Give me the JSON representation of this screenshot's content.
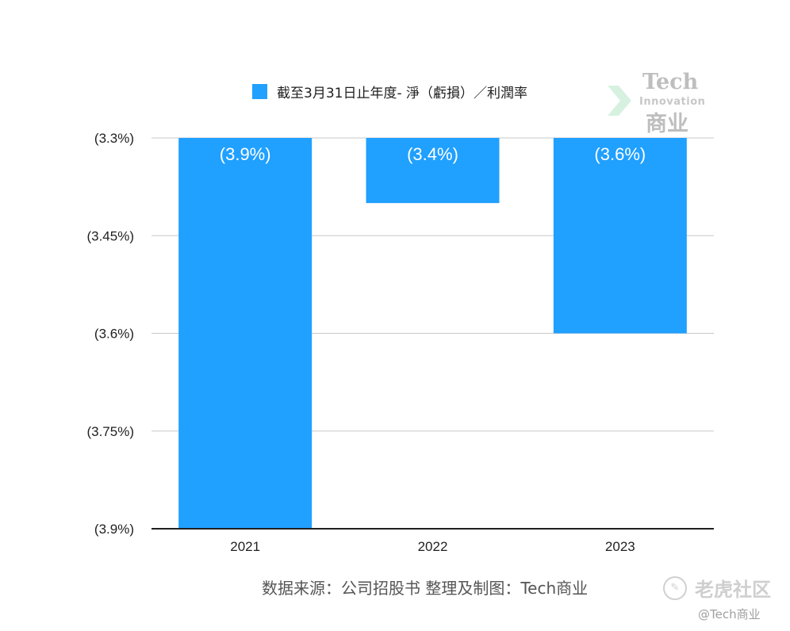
{
  "chart_data": {
    "type": "bar",
    "categories": [
      "2021",
      "2022",
      "2023"
    ],
    "series": [
      {
        "name": "截至3月31日止年度- 淨（虧損）／利潤率",
        "values": [
          -3.9,
          -3.4,
          -3.6
        ]
      }
    ],
    "data_labels": [
      "(3.9%)",
      "(3.4%)",
      "(3.6%)"
    ],
    "yaxis": {
      "ticks": [
        -3.3,
        -3.45,
        -3.6,
        -3.75,
        -3.9
      ],
      "tick_labels": [
        "(3.3%)",
        "(3.45%)",
        "(3.6%)",
        "(3.75%)",
        "(3.9%)"
      ],
      "ylim": [
        -3.9,
        -3.3
      ]
    },
    "title": "",
    "xlabel": "",
    "ylabel": "",
    "grid": true,
    "legend_position": "top",
    "bar_color": "#20a0ff"
  },
  "legend": {
    "label": "截至3月31日止年度- 淨（虧損）／利潤率"
  },
  "source_note": "数据来源：公司招股书  整理及制图：Tech商业",
  "watermark": {
    "brand_top": "Tech",
    "brand_mid": "Innovation",
    "brand_bottom": "商业",
    "community": "老虎社区",
    "handle": "@Tech商业"
  }
}
